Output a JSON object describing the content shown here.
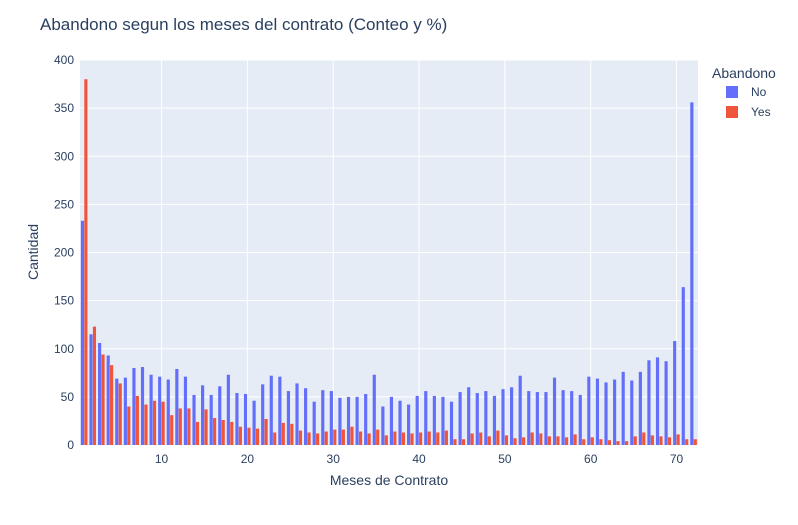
{
  "chart_data": {
    "type": "bar",
    "title": "Abandono segun los meses del contrato (Conteo y %)",
    "xlabel": "Meses de Contrato",
    "ylabel": "Cantidad",
    "xlim": [
      0.5,
      72.5
    ],
    "ylim": [
      0,
      400
    ],
    "x_ticks": [
      10,
      20,
      30,
      40,
      50,
      60,
      70
    ],
    "y_ticks": [
      0,
      50,
      100,
      150,
      200,
      250,
      300,
      350,
      400
    ],
    "grid": true,
    "legend_placement": "right",
    "legend_title": "Abandono",
    "x": [
      1,
      2,
      3,
      4,
      5,
      6,
      7,
      8,
      9,
      10,
      11,
      12,
      13,
      14,
      15,
      16,
      17,
      18,
      19,
      20,
      21,
      22,
      23,
      24,
      25,
      26,
      27,
      28,
      29,
      30,
      31,
      32,
      33,
      34,
      35,
      36,
      37,
      38,
      39,
      40,
      41,
      42,
      43,
      44,
      45,
      46,
      47,
      48,
      49,
      50,
      51,
      52,
      53,
      54,
      55,
      56,
      57,
      58,
      59,
      60,
      61,
      62,
      63,
      64,
      65,
      66,
      67,
      68,
      69,
      70,
      71,
      72
    ],
    "series": [
      {
        "name": "No",
        "color": "#636efa",
        "values": [
          233,
          115,
          106,
          93,
          69,
          70,
          80,
          81,
          73,
          71,
          68,
          79,
          71,
          52,
          62,
          52,
          61,
          73,
          54,
          53,
          46,
          63,
          72,
          71,
          56,
          64,
          59,
          45,
          57,
          56,
          49,
          50,
          50,
          53,
          73,
          40,
          50,
          46,
          42,
          51,
          56,
          51,
          50,
          45,
          55,
          60,
          54,
          56,
          51,
          58,
          60,
          72,
          56,
          55,
          55,
          70,
          57,
          56,
          52,
          71,
          69,
          65,
          68,
          76,
          67,
          76,
          88,
          91,
          87,
          108,
          164,
          356
        ]
      },
      {
        "name": "Yes",
        "color": "#ef553b",
        "values": [
          380,
          123,
          94,
          83,
          64,
          40,
          51,
          42,
          46,
          45,
          31,
          38,
          38,
          24,
          37,
          28,
          26,
          24,
          19,
          18,
          17,
          27,
          13,
          23,
          22,
          15,
          13,
          12,
          14,
          16,
          16,
          19,
          14,
          12,
          16,
          10,
          14,
          13,
          12,
          13,
          14,
          13,
          15,
          6,
          6,
          12,
          13,
          9,
          15,
          10,
          7,
          8,
          13,
          12,
          9,
          9,
          8,
          11,
          6,
          8,
          6,
          5,
          4,
          4,
          9,
          13,
          10,
          9,
          8,
          11,
          6,
          6
        ]
      }
    ]
  }
}
